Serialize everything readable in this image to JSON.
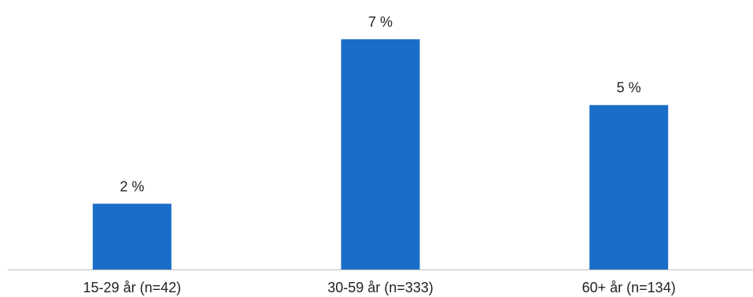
{
  "chart_data": {
    "type": "bar",
    "categories": [
      "15-29 år (n=42)",
      "30-59 år (n=333)",
      "60+ år (n=134)"
    ],
    "values": [
      2,
      7,
      5
    ],
    "value_labels": [
      "2 %",
      "7 %",
      "5 %"
    ],
    "ylim": [
      0,
      7
    ],
    "grid": false,
    "legend": "none",
    "colors": {
      "bar": "#1a6ec8",
      "axis": "#bfbfbf",
      "text": "#222222"
    }
  }
}
